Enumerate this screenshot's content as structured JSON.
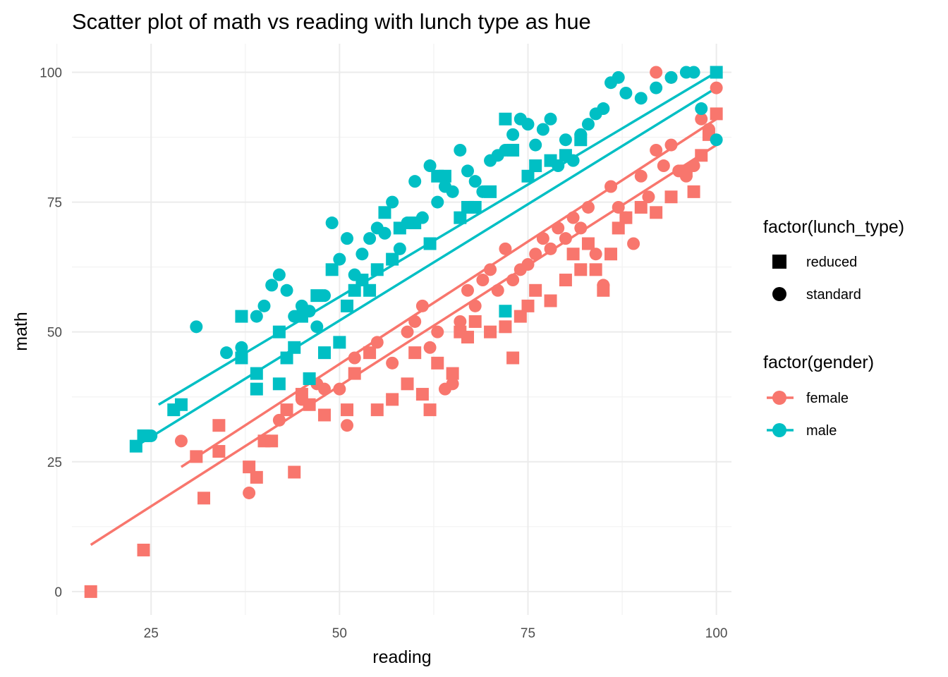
{
  "chart_data": {
    "type": "scatter",
    "title": "Scatter plot of math vs reading with lunch type as hue",
    "xlabel": "reading",
    "ylabel": "math",
    "xlim": [
      14.5,
      102
    ],
    "ylim": [
      -4.5,
      105.5
    ],
    "x_ticks": [
      25,
      50,
      75,
      100
    ],
    "y_ticks": [
      0,
      25,
      50,
      75,
      100
    ],
    "grid": true,
    "theme": "minimal",
    "colors": {
      "female": "#F8766D",
      "male": "#00BFC4",
      "shape_key": "#000000"
    },
    "legends": [
      {
        "title": "factor(lunch_type)",
        "kind": "shape",
        "entries": [
          {
            "label": "reduced",
            "shape": "square"
          },
          {
            "label": "standard",
            "shape": "circle"
          }
        ]
      },
      {
        "title": "factor(gender)",
        "kind": "color",
        "entries": [
          {
            "label": "female",
            "color": "#F8766D"
          },
          {
            "label": "male",
            "color": "#00BFC4"
          }
        ]
      }
    ],
    "legend_position": "right",
    "series": [
      {
        "name": "female",
        "lunch": "reduced",
        "color": "#F8766D",
        "shape": "square",
        "points": [
          [
            17,
            0
          ],
          [
            24,
            8
          ],
          [
            32,
            18
          ],
          [
            31,
            26
          ],
          [
            34,
            27
          ],
          [
            34,
            32
          ],
          [
            38,
            24
          ],
          [
            39,
            22
          ],
          [
            40,
            29
          ],
          [
            41,
            29
          ],
          [
            44,
            23
          ],
          [
            43,
            35
          ],
          [
            45,
            38
          ],
          [
            46,
            36
          ],
          [
            48,
            34
          ],
          [
            51,
            35
          ],
          [
            52,
            42
          ],
          [
            54,
            46
          ],
          [
            55,
            35
          ],
          [
            57,
            37
          ],
          [
            59,
            40
          ],
          [
            60,
            46
          ],
          [
            61,
            38
          ],
          [
            62,
            35
          ],
          [
            63,
            44
          ],
          [
            65,
            42
          ],
          [
            66,
            50
          ],
          [
            67,
            49
          ],
          [
            68,
            52
          ],
          [
            70,
            50
          ],
          [
            72,
            51
          ],
          [
            73,
            45
          ],
          [
            74,
            53
          ],
          [
            75,
            55
          ],
          [
            76,
            58
          ],
          [
            78,
            56
          ],
          [
            80,
            60
          ],
          [
            81,
            65
          ],
          [
            82,
            62
          ],
          [
            83,
            67
          ],
          [
            84,
            62
          ],
          [
            85,
            58
          ],
          [
            86,
            65
          ],
          [
            87,
            70
          ],
          [
            88,
            72
          ],
          [
            90,
            74
          ],
          [
            92,
            73
          ],
          [
            94,
            76
          ],
          [
            96,
            81
          ],
          [
            97,
            77
          ],
          [
            98,
            84
          ],
          [
            99,
            88
          ],
          [
            100,
            92
          ]
        ]
      },
      {
        "name": "female",
        "lunch": "standard",
        "color": "#F8766D",
        "shape": "circle",
        "points": [
          [
            29,
            29
          ],
          [
            38,
            19
          ],
          [
            42,
            33
          ],
          [
            45,
            37
          ],
          [
            47,
            40
          ],
          [
            48,
            39
          ],
          [
            50,
            39
          ],
          [
            51,
            32
          ],
          [
            52,
            45
          ],
          [
            55,
            48
          ],
          [
            57,
            44
          ],
          [
            59,
            50
          ],
          [
            60,
            52
          ],
          [
            61,
            55
          ],
          [
            62,
            47
          ],
          [
            63,
            50
          ],
          [
            64,
            39
          ],
          [
            65,
            40
          ],
          [
            66,
            52
          ],
          [
            67,
            58
          ],
          [
            68,
            55
          ],
          [
            69,
            60
          ],
          [
            70,
            62
          ],
          [
            71,
            58
          ],
          [
            72,
            66
          ],
          [
            73,
            60
          ],
          [
            74,
            62
          ],
          [
            75,
            63
          ],
          [
            76,
            65
          ],
          [
            77,
            68
          ],
          [
            78,
            66
          ],
          [
            79,
            70
          ],
          [
            80,
            68
          ],
          [
            81,
            72
          ],
          [
            82,
            70
          ],
          [
            83,
            74
          ],
          [
            84,
            65
          ],
          [
            85,
            59
          ],
          [
            86,
            78
          ],
          [
            87,
            74
          ],
          [
            88,
            72
          ],
          [
            89,
            67
          ],
          [
            90,
            80
          ],
          [
            91,
            76
          ],
          [
            92,
            85
          ],
          [
            93,
            82
          ],
          [
            94,
            86
          ],
          [
            95,
            81
          ],
          [
            96,
            80
          ],
          [
            97,
            82
          ],
          [
            98,
            91
          ],
          [
            99,
            89
          ],
          [
            100,
            97
          ],
          [
            92,
            100
          ],
          [
            94,
            99
          ]
        ]
      },
      {
        "name": "male",
        "lunch": "reduced",
        "color": "#00BFC4",
        "shape": "square",
        "points": [
          [
            23,
            28
          ],
          [
            24,
            30
          ],
          [
            28,
            35
          ],
          [
            29,
            36
          ],
          [
            37,
            45
          ],
          [
            37,
            53
          ],
          [
            39,
            39
          ],
          [
            39,
            42
          ],
          [
            42,
            40
          ],
          [
            42,
            50
          ],
          [
            43,
            45
          ],
          [
            44,
            47
          ],
          [
            45,
            53
          ],
          [
            46,
            41
          ],
          [
            47,
            57
          ],
          [
            48,
            46
          ],
          [
            49,
            62
          ],
          [
            50,
            48
          ],
          [
            51,
            55
          ],
          [
            52,
            58
          ],
          [
            53,
            60
          ],
          [
            54,
            58
          ],
          [
            55,
            62
          ],
          [
            56,
            73
          ],
          [
            57,
            64
          ],
          [
            58,
            70
          ],
          [
            60,
            71
          ],
          [
            62,
            67
          ],
          [
            63,
            80
          ],
          [
            64,
            80
          ],
          [
            66,
            72
          ],
          [
            67,
            74
          ],
          [
            68,
            74
          ],
          [
            70,
            77
          ],
          [
            72,
            54
          ],
          [
            72,
            91
          ],
          [
            73,
            85
          ],
          [
            75,
            80
          ],
          [
            76,
            82
          ],
          [
            78,
            83
          ],
          [
            80,
            84
          ],
          [
            82,
            87
          ],
          [
            100,
            100
          ]
        ]
      },
      {
        "name": "male",
        "lunch": "standard",
        "color": "#00BFC4",
        "shape": "circle",
        "points": [
          [
            25,
            30
          ],
          [
            31,
            51
          ],
          [
            35,
            46
          ],
          [
            37,
            47
          ],
          [
            39,
            53
          ],
          [
            40,
            55
          ],
          [
            41,
            59
          ],
          [
            42,
            61
          ],
          [
            43,
            58
          ],
          [
            44,
            53
          ],
          [
            45,
            55
          ],
          [
            46,
            54
          ],
          [
            47,
            51
          ],
          [
            48,
            57
          ],
          [
            49,
            71
          ],
          [
            50,
            64
          ],
          [
            51,
            68
          ],
          [
            52,
            61
          ],
          [
            53,
            65
          ],
          [
            54,
            68
          ],
          [
            55,
            70
          ],
          [
            56,
            69
          ],
          [
            57,
            75
          ],
          [
            58,
            66
          ],
          [
            59,
            71
          ],
          [
            60,
            79
          ],
          [
            61,
            72
          ],
          [
            62,
            82
          ],
          [
            63,
            75
          ],
          [
            64,
            78
          ],
          [
            65,
            77
          ],
          [
            66,
            85
          ],
          [
            67,
            81
          ],
          [
            68,
            79
          ],
          [
            69,
            77
          ],
          [
            70,
            83
          ],
          [
            71,
            84
          ],
          [
            72,
            85
          ],
          [
            73,
            88
          ],
          [
            74,
            91
          ],
          [
            75,
            90
          ],
          [
            76,
            86
          ],
          [
            77,
            89
          ],
          [
            78,
            91
          ],
          [
            79,
            82
          ],
          [
            80,
            87
          ],
          [
            81,
            83
          ],
          [
            82,
            88
          ],
          [
            83,
            90
          ],
          [
            84,
            92
          ],
          [
            85,
            93
          ],
          [
            86,
            98
          ],
          [
            87,
            99
          ],
          [
            88,
            96
          ],
          [
            90,
            95
          ],
          [
            92,
            97
          ],
          [
            94,
            99
          ],
          [
            96,
            100
          ],
          [
            97,
            100
          ],
          [
            100,
            87
          ],
          [
            98,
            93
          ]
        ]
      }
    ],
    "trend_lines": [
      {
        "name": "female",
        "lunch": "reduced",
        "color": "#F8766D",
        "x": [
          17,
          100
        ],
        "y": [
          9,
          86
        ]
      },
      {
        "name": "female",
        "lunch": "standard",
        "color": "#F8766D",
        "x": [
          29,
          100
        ],
        "y": [
          24,
          91
        ]
      },
      {
        "name": "male",
        "lunch": "reduced",
        "color": "#00BFC4",
        "x": [
          23,
          100
        ],
        "y": [
          28,
          97
        ]
      },
      {
        "name": "male",
        "lunch": "standard",
        "color": "#00BFC4",
        "x": [
          26,
          100
        ],
        "y": [
          36,
          100
        ]
      }
    ]
  }
}
